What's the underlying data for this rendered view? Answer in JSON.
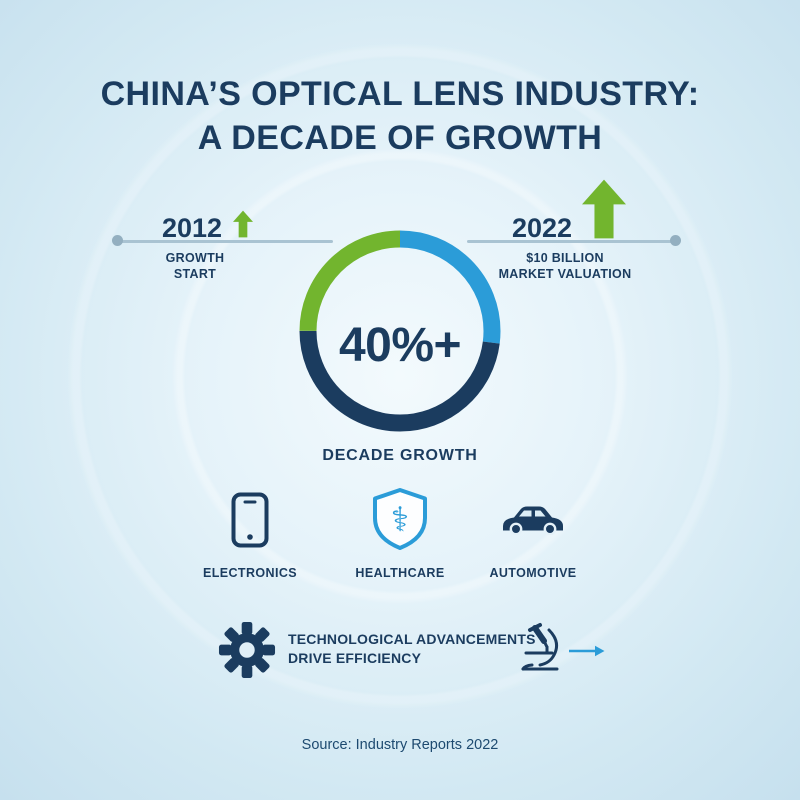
{
  "title": {
    "line1": "CHINA’S OPTICAL LENS INDUSTRY:",
    "line2": "A DECADE OF GROWTH"
  },
  "timeline": {
    "start": {
      "year": "2012",
      "label_line1": "GROWTH",
      "label_line2": "START"
    },
    "end": {
      "year": "2022",
      "label_line1": "$10 BILLION",
      "label_line2": "MARKET VALUATION"
    }
  },
  "gauge": {
    "value": "40%+",
    "caption": "DECADE GROWTH"
  },
  "industries": [
    {
      "label": "ELECTRONICS"
    },
    {
      "label": "HEALTHCARE"
    },
    {
      "label": "AUTOMOTIVE"
    }
  ],
  "advancement": {
    "line1": "TECHNOLOGICAL ADVANCEMENTS",
    "line2": "DRIVE EFFICIENCY"
  },
  "source": "Source: Industry Reports 2022",
  "icons": {
    "caduceus_glyph": "⚕"
  },
  "colors": {
    "navy": "#1b3c5f",
    "green": "#72b52e",
    "blue": "#2b9cd8",
    "timeline_line": "#a9c3d2",
    "background_center": "#f3fafd",
    "background_edge": "#c6e0ee"
  },
  "chart_data": {
    "type": "pie",
    "variant": "donut-gauge",
    "title": "China optical lens industry decade growth",
    "center_label": "40%+",
    "caption": "DECADE GROWTH",
    "start_angle_deg": 0,
    "direction": "clockwise",
    "segments": [
      {
        "name": "blue-segment",
        "color": "#2b9cd8",
        "fraction": 0.27
      },
      {
        "name": "navy-segment",
        "color": "#1b3c5f",
        "fraction": 0.48
      },
      {
        "name": "green-segment",
        "color": "#72b52e",
        "fraction": 0.25
      }
    ],
    "timeline_points": [
      {
        "year": "2012",
        "note": "GROWTH START"
      },
      {
        "year": "2022",
        "note": "$10 BILLION MARKET VALUATION"
      }
    ]
  }
}
